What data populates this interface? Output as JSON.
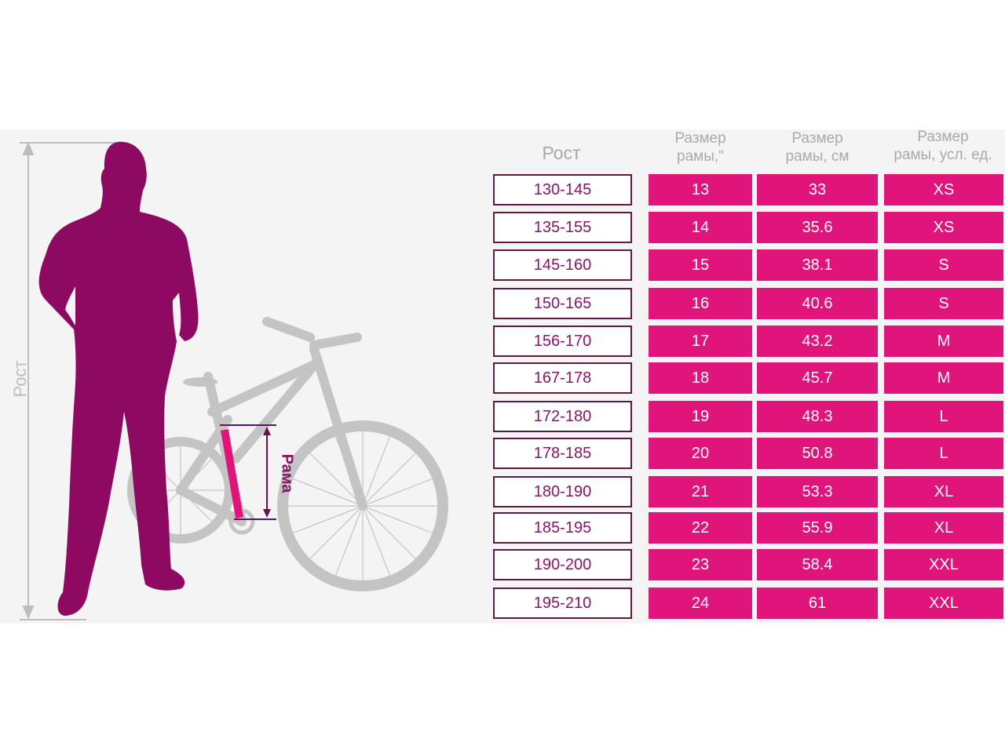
{
  "labels": {
    "height_axis": "Рост",
    "frame_marker": "Рама"
  },
  "colors": {
    "person": "#8e0a62",
    "cells": "#e0157c",
    "bike": "#c4c4c4",
    "header_text": "#a9a9a9"
  },
  "table": {
    "headers": [
      {
        "line1": "Рост",
        "line2": ""
      },
      {
        "line1": "Размер",
        "line2": "рамы,\""
      },
      {
        "line1": "Размер",
        "line2": "рамы, см"
      },
      {
        "line1": "Размер",
        "line2": "рамы, усл. ед."
      }
    ],
    "rows": [
      [
        "130-145",
        "13",
        "33",
        "XS"
      ],
      [
        "135-155",
        "14",
        "35.6",
        "XS"
      ],
      [
        "145-160",
        "15",
        "38.1",
        "S"
      ],
      [
        "150-165",
        "16",
        "40.6",
        "S"
      ],
      [
        "156-170",
        "17",
        "43.2",
        "M"
      ],
      [
        "167-178",
        "18",
        "45.7",
        "M"
      ],
      [
        "172-180",
        "19",
        "48.3",
        "L"
      ],
      [
        "178-185",
        "20",
        "50.8",
        "L"
      ],
      [
        "180-190",
        "21",
        "53.3",
        "XL"
      ],
      [
        "185-195",
        "22",
        "55.9",
        "XL"
      ],
      [
        "190-200",
        "23",
        "58.4",
        "XXL"
      ],
      [
        "195-210",
        "24",
        "61",
        "XXL"
      ]
    ]
  }
}
